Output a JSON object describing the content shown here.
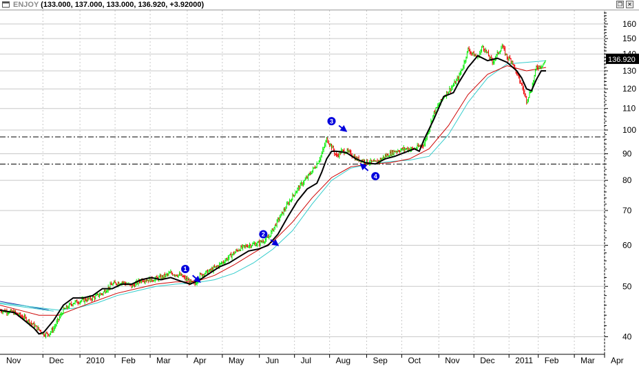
{
  "window": {
    "symbol": "ENJOY",
    "ohlc": "(133.000, 137.000, 133.000, 136.920, +3.92000)",
    "restore_icon": "restore-icon",
    "close_icon": "close-icon",
    "restore_glyph": "❐",
    "close_glyph": "✕"
  },
  "chart_data": {
    "type": "line",
    "symbol": "ENJOY",
    "scale": "log",
    "ylim": [
      37,
      170
    ],
    "y_ticks": [
      40,
      50,
      60,
      70,
      80,
      90,
      100,
      110,
      120,
      130,
      140,
      150,
      160
    ],
    "x_ticks": [
      "Nov",
      "Dec",
      "2010",
      "Feb",
      "Mar",
      "Apr",
      "May",
      "Jun",
      "Jul",
      "Aug",
      "Sep",
      "Oct",
      "Nov",
      "Dec",
      "2011",
      "Feb",
      "Mar",
      "Apr"
    ],
    "last_price": "136.920",
    "last_ohlc": {
      "open": 133.0,
      "high": 137.0,
      "low": 133.0,
      "close": 136.92,
      "change": 3.92
    },
    "horizontal_lines": [
      97,
      86
    ],
    "colors": {
      "up": "#00ee00",
      "down": "#ee0000",
      "black_ma": "#000000",
      "red_ma": "#cc0000",
      "cyan_ma": "#33cccc",
      "annotation": "#0000dd",
      "hline": "#000000",
      "grid": "#c8c8c8",
      "price_box": "#000000",
      "price_text": "#ffffff"
    },
    "price": [
      [
        0,
        45
      ],
      [
        3,
        44.5
      ],
      [
        5,
        43.5
      ],
      [
        7,
        42
      ],
      [
        9,
        40.5
      ],
      [
        10,
        40.5
      ],
      [
        11,
        41.5
      ],
      [
        13,
        45
      ],
      [
        15,
        46.5
      ],
      [
        17,
        47
      ],
      [
        19,
        47.5
      ],
      [
        21,
        48.5
      ],
      [
        23,
        50.5
      ],
      [
        25,
        51
      ],
      [
        27,
        50
      ],
      [
        29,
        51.5
      ],
      [
        31,
        51.5
      ],
      [
        33,
        52
      ],
      [
        35,
        53
      ],
      [
        37,
        52.5
      ],
      [
        39,
        51
      ],
      [
        40,
        50.5
      ],
      [
        41,
        52.5
      ],
      [
        43,
        53.5
      ],
      [
        45,
        55
      ],
      [
        47,
        57
      ],
      [
        49,
        59
      ],
      [
        51,
        60
      ],
      [
        53,
        60.5
      ],
      [
        55,
        62
      ],
      [
        57,
        67
      ],
      [
        59,
        72
      ],
      [
        61,
        77
      ],
      [
        63,
        81
      ],
      [
        65,
        86
      ],
      [
        66,
        90
      ],
      [
        67,
        96
      ],
      [
        68,
        93
      ],
      [
        69,
        89
      ],
      [
        70,
        91
      ],
      [
        71,
        91
      ],
      [
        72,
        90
      ],
      [
        73,
        88
      ],
      [
        75,
        87
      ],
      [
        77,
        86.5
      ],
      [
        79,
        89
      ],
      [
        81,
        91
      ],
      [
        83,
        92
      ],
      [
        85,
        92
      ],
      [
        87,
        94
      ],
      [
        89,
        108
      ],
      [
        91,
        116
      ],
      [
        93,
        122
      ],
      [
        94,
        126
      ],
      [
        95,
        133
      ],
      [
        96,
        143
      ],
      [
        97,
        140
      ],
      [
        98,
        138
      ],
      [
        99,
        145
      ],
      [
        100,
        140
      ],
      [
        101,
        135
      ],
      [
        102,
        140
      ],
      [
        103,
        145
      ],
      [
        104,
        138
      ],
      [
        105,
        136
      ],
      [
        106,
        128
      ],
      [
        107,
        122
      ],
      [
        108,
        114
      ],
      [
        109,
        120
      ],
      [
        110,
        132
      ],
      [
        111,
        133
      ],
      [
        112,
        136
      ]
    ],
    "black_ma": [
      [
        0,
        45
      ],
      [
        3,
        44.5
      ],
      [
        5,
        43
      ],
      [
        7,
        41.5
      ],
      [
        8,
        40.5
      ],
      [
        9,
        40.8
      ],
      [
        11,
        43
      ],
      [
        13,
        46
      ],
      [
        15,
        47.5
      ],
      [
        17,
        47.5
      ],
      [
        19,
        48
      ],
      [
        21,
        49.5
      ],
      [
        23,
        49.5
      ],
      [
        25,
        50.5
      ],
      [
        27,
        50.5
      ],
      [
        29,
        51.5
      ],
      [
        31,
        52
      ],
      [
        33,
        51.5
      ],
      [
        35,
        52
      ],
      [
        37,
        51.2
      ],
      [
        39,
        50.5
      ],
      [
        41,
        51.5
      ],
      [
        43,
        53
      ],
      [
        45,
        54.5
      ],
      [
        47,
        55.5
      ],
      [
        49,
        57
      ],
      [
        51,
        58.5
      ],
      [
        53,
        59
      ],
      [
        55,
        60
      ],
      [
        57,
        63
      ],
      [
        59,
        68
      ],
      [
        61,
        73
      ],
      [
        63,
        77
      ],
      [
        65,
        79
      ],
      [
        66,
        83
      ],
      [
        67,
        88
      ],
      [
        68,
        91
      ],
      [
        69,
        91
      ],
      [
        71,
        90.5
      ],
      [
        73,
        88
      ],
      [
        75,
        86.5
      ],
      [
        77,
        86
      ],
      [
        79,
        88
      ],
      [
        81,
        89
      ],
      [
        83,
        90.5
      ],
      [
        85,
        92
      ],
      [
        86,
        91
      ],
      [
        87,
        96
      ],
      [
        89,
        105
      ],
      [
        91,
        116
      ],
      [
        93,
        118
      ],
      [
        94,
        123
      ],
      [
        96,
        132
      ],
      [
        98,
        139
      ],
      [
        100,
        136
      ],
      [
        102,
        137.5
      ],
      [
        104,
        135
      ],
      [
        106,
        130
      ],
      [
        107,
        126
      ],
      [
        108,
        120
      ],
      [
        109,
        119
      ],
      [
        110,
        125
      ],
      [
        111,
        130
      ],
      [
        112,
        130
      ]
    ],
    "red_ma": [
      [
        0,
        46
      ],
      [
        4,
        45
      ],
      [
        8,
        44
      ],
      [
        12,
        44
      ],
      [
        16,
        45.5
      ],
      [
        20,
        47
      ],
      [
        24,
        48.5
      ],
      [
        28,
        49.5
      ],
      [
        32,
        50.5
      ],
      [
        36,
        51
      ],
      [
        40,
        51
      ],
      [
        44,
        52.5
      ],
      [
        48,
        55
      ],
      [
        52,
        58
      ],
      [
        56,
        61
      ],
      [
        60,
        66.5
      ],
      [
        64,
        74
      ],
      [
        68,
        81
      ],
      [
        72,
        85
      ],
      [
        76,
        86
      ],
      [
        80,
        86.5
      ],
      [
        84,
        88
      ],
      [
        88,
        92
      ],
      [
        92,
        102
      ],
      [
        96,
        117
      ],
      [
        100,
        128
      ],
      [
        104,
        133
      ],
      [
        108,
        130
      ],
      [
        112,
        132
      ]
    ],
    "cyan_ma": [
      [
        0,
        46.5
      ],
      [
        4,
        46
      ],
      [
        8,
        45.5
      ],
      [
        12,
        45
      ],
      [
        16,
        45.5
      ],
      [
        20,
        46.5
      ],
      [
        24,
        48
      ],
      [
        28,
        49
      ],
      [
        32,
        50
      ],
      [
        36,
        50.5
      ],
      [
        40,
        50.8
      ],
      [
        44,
        51.5
      ],
      [
        48,
        53
      ],
      [
        52,
        55.5
      ],
      [
        56,
        59
      ],
      [
        60,
        64
      ],
      [
        64,
        72
      ],
      [
        68,
        80
      ],
      [
        72,
        84.5
      ],
      [
        76,
        86
      ],
      [
        80,
        87
      ],
      [
        84,
        87.5
      ],
      [
        88,
        89
      ],
      [
        92,
        98
      ],
      [
        96,
        113
      ],
      [
        100,
        126
      ],
      [
        104,
        134
      ],
      [
        108,
        135
      ],
      [
        112,
        136
      ]
    ],
    "old_trendlines": [
      {
        "color": "#2233aa",
        "points": [
          [
            0,
            46.8
          ],
          [
            10,
            45
          ]
        ]
      },
      {
        "color": "#33cccc",
        "points": [
          [
            0,
            46.3
          ],
          [
            11,
            44.8
          ]
        ]
      }
    ],
    "x_max": 124,
    "annotations": [
      {
        "label": "1",
        "marker": [
          38,
          54
        ],
        "arrow": [
          [
            39.5,
            52.5
          ],
          [
            41,
            51
          ]
        ]
      },
      {
        "label": "2",
        "marker": [
          54,
          63
        ],
        "arrow": [
          [
            55.5,
            61.5
          ],
          [
            57,
            60
          ]
        ]
      },
      {
        "label": "3",
        "marker": [
          68,
          104
        ],
        "arrow": [
          [
            69.5,
            102
          ],
          [
            71,
            99.5
          ]
        ]
      },
      {
        "label": "4",
        "marker": [
          77,
          81.5
        ],
        "arrow": [
          [
            75.5,
            83.5
          ],
          [
            74,
            86
          ]
        ]
      }
    ]
  }
}
